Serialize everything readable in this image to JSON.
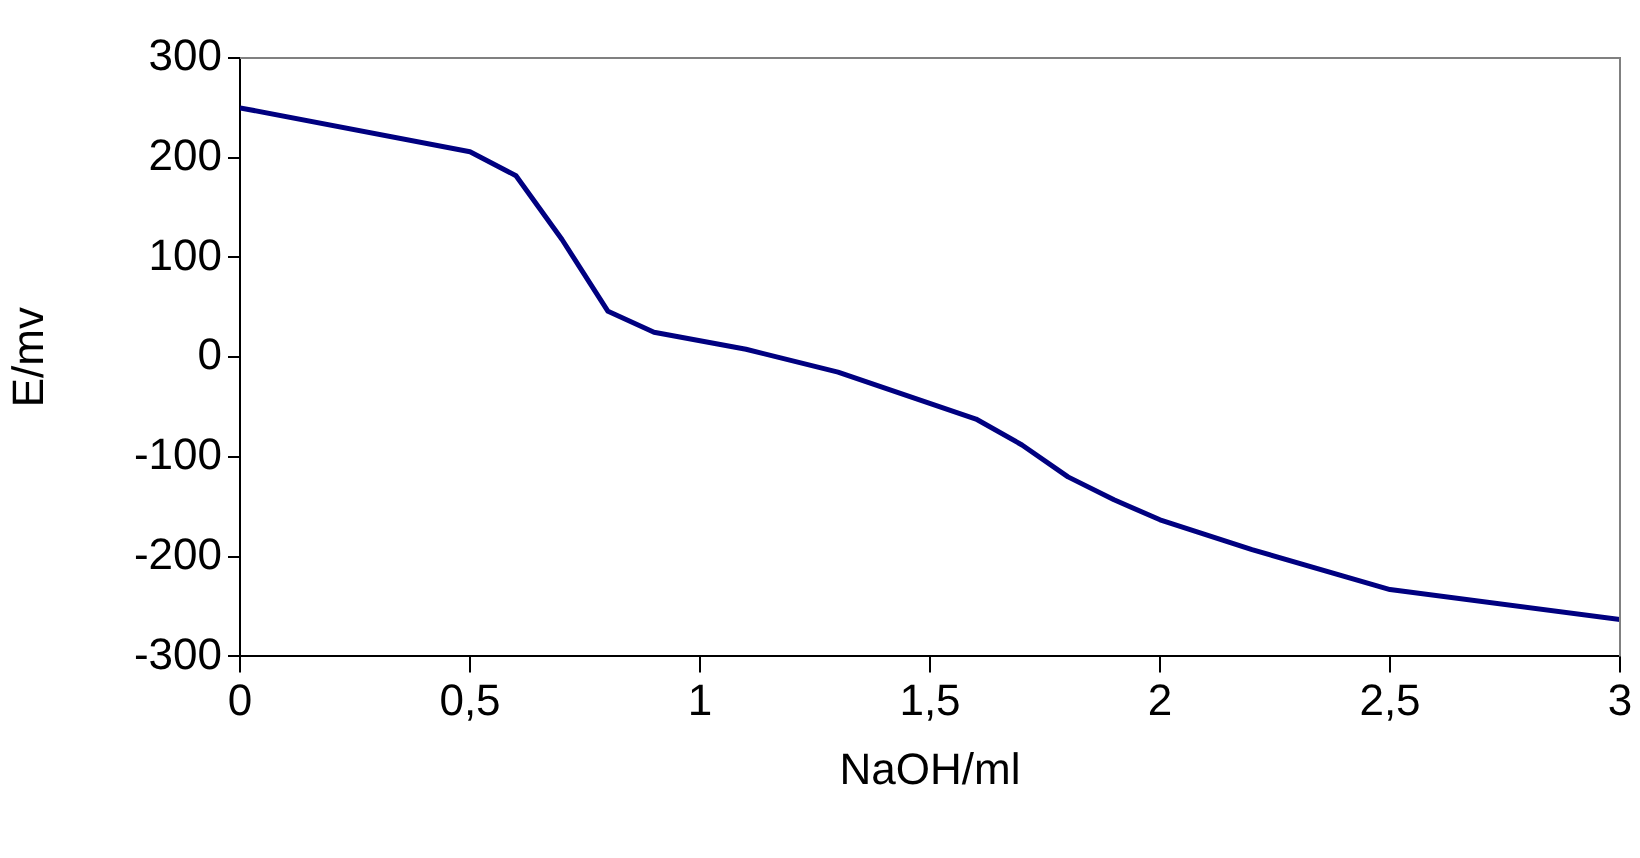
{
  "chart_data": {
    "type": "line",
    "xlabel": "NaOH/ml",
    "ylabel": "E/mv",
    "x": [
      0,
      0.5,
      0.6,
      0.7,
      0.8,
      0.9,
      1.1,
      1.3,
      1.6,
      1.7,
      1.8,
      1.9,
      2.0,
      2.2,
      2.5,
      3.0
    ],
    "series": [
      {
        "color": "#000080",
        "values": [
          250,
          206,
          182,
          118,
          46,
          25,
          8,
          -15,
          -62,
          -88,
          -120,
          -143,
          -163,
          -193,
          -233,
          -263
        ]
      }
    ],
    "xlim": [
      0,
      3
    ],
    "xticks": [
      0,
      {
        "value": 0.5,
        "label": "0,5"
      },
      1,
      {
        "value": 1.5,
        "label": "1,5"
      },
      2,
      {
        "value": 2.5,
        "label": "2,5"
      },
      3
    ],
    "ylim": [
      -300,
      300
    ],
    "yticks": [
      -300,
      -200,
      -100,
      0,
      100,
      200,
      300
    ],
    "grid": false,
    "legend": false,
    "marker": "none",
    "line_style": "solid"
  }
}
